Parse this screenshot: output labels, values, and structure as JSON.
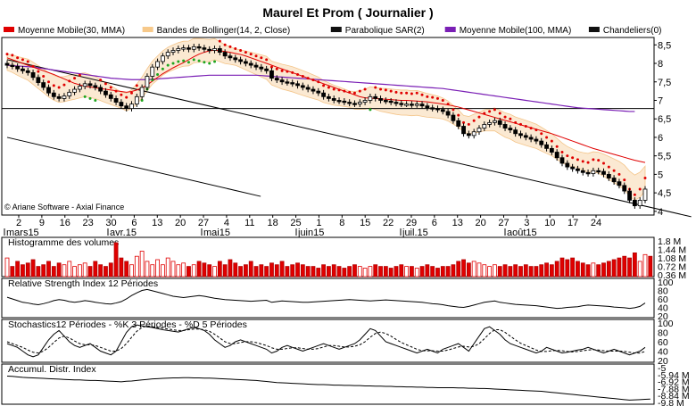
{
  "title": "Maurel Et Prom  ( Journalier )",
  "legend": [
    {
      "label": "Moyenne Mobile(30, MMA)",
      "color": "#e00000"
    },
    {
      "label": "Bandes de Bollinger(14, 2, Close)",
      "color": "#f7c98a"
    },
    {
      "label": "Parabolique SAR(2)",
      "color": "#111111"
    },
    {
      "label": "Moyenne Mobile(100, MMA)",
      "color": "#7a1fb5"
    },
    {
      "label": "Chandeliers(0)",
      "color": "#111111"
    }
  ],
  "watermark": "© Ariane Software - Axial Finance",
  "x_axis": {
    "day_ticks": [
      "2",
      "9",
      "16",
      "23",
      "30",
      "6",
      "13",
      "20",
      "27",
      "4",
      "11",
      "18",
      "25",
      "1",
      "8",
      "15",
      "22",
      "29",
      "6",
      "13",
      "20",
      "27",
      "3",
      "10",
      "17",
      "24"
    ],
    "months": [
      "mars15",
      "avr.15",
      "mai15",
      "juin15",
      "juil.15",
      "août15"
    ]
  },
  "price_axis": {
    "ticks": [
      "8,5",
      "8",
      "7,5",
      "7",
      "6,5",
      "6",
      "5,5",
      "5",
      "4,5",
      "4"
    ],
    "min": 3.9,
    "max": 8.7
  },
  "panels": {
    "volume": {
      "title": "Histogramme des volumes",
      "ticks": [
        "1.8 M",
        "1.44 M",
        "1.08 M",
        "0.72 M",
        "0.36 M"
      ]
    },
    "rsi": {
      "title": "Relative Strength Index 12 Périodes",
      "ticks": [
        "100",
        "80",
        "60",
        "40",
        "20"
      ]
    },
    "stoch": {
      "title": "Stochastics12 Périodes  -  %K 3 Périodes  -  %D 5 Périodes",
      "ticks": [
        "100",
        "80",
        "60",
        "40",
        "20"
      ]
    },
    "adi": {
      "title": "Accumul. Distr. Index",
      "ticks": [
        "-5",
        "-5.94 M",
        "-6.92 M",
        "-7.88 M",
        "-8.84 M",
        "-9.8 M"
      ]
    }
  },
  "chart_data": {
    "type": "candlestick",
    "title": "Maurel Et Prom  ( Journalier )",
    "period": "mars 2015 – août 2015",
    "close": [
      7.95,
      7.92,
      7.85,
      7.8,
      7.75,
      7.62,
      7.48,
      7.35,
      7.2,
      7.1,
      7.05,
      7.12,
      7.22,
      7.3,
      7.38,
      7.45,
      7.4,
      7.35,
      7.25,
      7.15,
      7.05,
      6.95,
      6.85,
      6.78,
      6.9,
      7.1,
      7.35,
      7.65,
      7.9,
      8.05,
      8.2,
      8.3,
      8.35,
      8.4,
      8.42,
      8.38,
      8.45,
      8.42,
      8.38,
      8.35,
      8.4,
      8.3,
      8.2,
      8.15,
      8.1,
      8.05,
      8,
      7.95,
      7.9,
      7.85,
      7.8,
      7.6,
      7.55,
      7.5,
      7.48,
      7.45,
      7.4,
      7.35,
      7.3,
      7.25,
      7.2,
      7.1,
      7.05,
      7,
      6.98,
      6.95,
      6.92,
      6.9,
      6.95,
      7,
      7.1,
      7.05,
      7,
      6.98,
      6.95,
      6.92,
      6.9,
      6.9,
      6.88,
      6.9,
      6.85,
      6.8,
      6.78,
      6.75,
      6.7,
      6.6,
      6.45,
      6.3,
      6.1,
      6.05,
      6.15,
      6.25,
      6.35,
      6.4,
      6.45,
      6.35,
      6.25,
      6.2,
      6.1,
      6.05,
      6,
      5.95,
      5.9,
      5.8,
      5.7,
      5.6,
      5.45,
      5.3,
      5.2,
      5.15,
      5.1,
      5.05,
      5.02,
      5.1,
      5.08,
      5,
      4.9,
      4.8,
      4.7,
      4.55,
      4.3,
      4.15,
      4.3,
      4.6
    ],
    "sma30": [
      8.15,
      8.1,
      8.05,
      8,
      7.95,
      7.9,
      7.85,
      7.8,
      7.75,
      7.7,
      7.64,
      7.58,
      7.52,
      7.46,
      7.42,
      7.38,
      7.36,
      7.34,
      7.32,
      7.3,
      7.28,
      7.26,
      7.24,
      7.22,
      7.24,
      7.28,
      7.34,
      7.42,
      7.52,
      7.62,
      7.72,
      7.8,
      7.88,
      7.95,
      8.02,
      8.1,
      8.18,
      8.25,
      8.3,
      8.34,
      8.36,
      8.34,
      8.32,
      8.3,
      8.27,
      8.24,
      8.2,
      8.15,
      8.1,
      8.05,
      8,
      7.95,
      7.9,
      7.85,
      7.8,
      7.75,
      7.7,
      7.65,
      7.6,
      7.55,
      7.5,
      7.45,
      7.4,
      7.35,
      7.3,
      7.25,
      7.2,
      7.15,
      7.1,
      7.07,
      7.06,
      7.05,
      7.04,
      7.03,
      7.02,
      7.01,
      7,
      7,
      6.99,
      6.98,
      6.97,
      6.96,
      6.94,
      6.92,
      6.9,
      6.88,
      6.85,
      6.82,
      6.78,
      6.74,
      6.7,
      6.66,
      6.62,
      6.58,
      6.54,
      6.5,
      6.46,
      6.42,
      6.38,
      6.34,
      6.3,
      6.26,
      6.22,
      6.18,
      6.14,
      6.1,
      6.05,
      6,
      5.95,
      5.9,
      5.85,
      5.8,
      5.75,
      5.7,
      5.66,
      5.62,
      5.58,
      5.54,
      5.5,
      5.46,
      5.42,
      5.38,
      5.35,
      5.32
    ],
    "sma100": [
      7.95,
      7.94,
      7.93,
      7.92,
      7.91,
      7.9,
      7.88,
      7.86,
      7.84,
      7.82,
      7.8,
      7.78,
      7.76,
      7.74,
      7.72,
      7.7,
      7.68,
      7.66,
      7.64,
      7.62,
      7.6,
      7.59,
      7.58,
      7.57,
      7.56,
      7.56,
      7.56,
      7.56,
      7.57,
      7.58,
      7.59,
      7.6,
      7.61,
      7.62,
      7.63,
      7.64,
      7.65,
      7.66,
      7.67,
      7.68,
      7.68,
      7.68,
      7.68,
      7.68,
      7.68,
      7.68,
      7.68,
      7.68,
      7.68,
      7.67,
      7.66,
      7.65,
      7.64,
      7.63,
      7.62,
      7.61,
      7.6,
      7.59,
      7.58,
      7.57,
      7.56,
      7.55,
      7.54,
      7.53,
      7.52,
      7.51,
      7.5,
      7.49,
      7.48,
      7.47,
      7.46,
      7.45,
      7.44,
      7.43,
      7.42,
      7.41,
      7.4,
      7.39,
      7.38,
      7.37,
      7.36,
      7.35,
      7.34,
      7.33,
      7.32,
      7.3,
      7.28,
      7.26,
      7.24,
      7.22,
      7.2,
      7.18,
      7.16,
      7.14,
      7.12,
      7.1,
      7.08,
      7.06,
      7.04,
      7.02,
      7,
      6.98,
      6.96,
      6.94,
      6.92,
      6.9,
      6.88,
      6.86,
      6.84,
      6.82,
      6.8,
      6.79,
      6.78,
      6.77,
      6.76,
      6.75,
      6.74,
      6.73,
      6.72,
      6.71,
      6.7,
      6.7
    ],
    "trendlines": [
      {
        "from": [
          0,
          8.1
        ],
        "to": [
          125,
          4.0
        ]
      },
      {
        "from": [
          0,
          6.0
        ],
        "to": [
          42,
          4.55
        ]
      },
      {
        "horizontal": 6.78
      }
    ],
    "volume_ratio": [
      0.55,
      0.3,
      0.45,
      0.35,
      0.4,
      0.5,
      0.3,
      0.35,
      0.45,
      0.3,
      0.4,
      0.35,
      0.45,
      0.3,
      0.35,
      0.4,
      0.3,
      0.45,
      0.35,
      0.3,
      0.4,
      1,
      0.55,
      0.45,
      0.35,
      0.6,
      0.75,
      0.45,
      0.35,
      0.5,
      0.35,
      0.55,
      0.45,
      0.35,
      0.4,
      0.3,
      0.35,
      0.45,
      0.4,
      0.35,
      0.3,
      0.45,
      0.35,
      0.5,
      0.4,
      0.3,
      0.35,
      0.45,
      0.3,
      0.35,
      0.3,
      0.4,
      0.35,
      0.45,
      0.3,
      0.35,
      0.4,
      0.35,
      0.3,
      0.3,
      0.25,
      0.35,
      0.3,
      0.35,
      0.3,
      0.25,
      0.3,
      0.35,
      0.3,
      0.25,
      0.3,
      0.35,
      0.3,
      0.3,
      0.25,
      0.3,
      0.35,
      0.3,
      0.3,
      0.25,
      0.3,
      0.35,
      0.3,
      0.25,
      0.3,
      0.3,
      0.35,
      0.45,
      0.5,
      0.4,
      0.45,
      0.4,
      0.35,
      0.3,
      0.35,
      0.3,
      0.35,
      0.3,
      0.35,
      0.3,
      0.35,
      0.3,
      0.3,
      0.35,
      0.4,
      0.35,
      0.45,
      0.55,
      0.5,
      0.55,
      0.45,
      0.4,
      0.35,
      0.4,
      0.35,
      0.4,
      0.45,
      0.5,
      0.55,
      0.6,
      0.55,
      0.7,
      0.45,
      0.65,
      0.6
    ],
    "rsi": [
      55,
      50,
      45,
      40,
      38,
      35,
      33,
      36,
      40,
      45,
      48,
      46,
      42,
      40,
      42,
      45,
      43,
      40,
      38,
      36,
      35,
      38,
      42,
      50,
      60,
      68,
      75,
      78,
      74,
      70,
      66,
      62,
      58,
      56,
      54,
      56,
      58,
      60,
      58,
      55,
      52,
      50,
      48,
      47,
      46,
      45,
      44,
      43,
      44,
      45,
      46,
      40,
      42,
      44,
      43,
      42,
      41,
      40,
      40,
      41,
      42,
      43,
      44,
      45,
      46,
      47,
      48,
      47,
      46,
      45,
      44,
      45,
      46,
      47,
      46,
      45,
      44,
      43,
      42,
      41,
      40,
      38,
      36,
      35,
      33,
      30,
      28,
      26,
      25,
      28,
      32,
      36,
      40,
      42,
      44,
      40,
      38,
      36,
      34,
      33,
      32,
      31,
      30,
      28,
      26,
      24,
      22,
      23,
      25,
      26,
      27,
      30,
      32,
      31,
      30,
      29,
      28,
      26,
      25,
      24,
      22,
      24,
      28,
      38
    ],
    "stoch_k": [
      45,
      40,
      35,
      25,
      15,
      10,
      15,
      35,
      55,
      70,
      80,
      65,
      50,
      40,
      35,
      40,
      45,
      35,
      25,
      20,
      15,
      25,
      50,
      75,
      90,
      95,
      92,
      90,
      88,
      85,
      82,
      80,
      78,
      76,
      80,
      85,
      88,
      85,
      80,
      70,
      55,
      45,
      35,
      40,
      50,
      55,
      50,
      45,
      40,
      35,
      30,
      20,
      25,
      35,
      40,
      35,
      30,
      25,
      30,
      35,
      40,
      45,
      40,
      35,
      30,
      35,
      40,
      45,
      55,
      70,
      85,
      80,
      65,
      50,
      45,
      40,
      35,
      30,
      25,
      20,
      25,
      30,
      25,
      20,
      30,
      35,
      40,
      45,
      35,
      25,
      45,
      65,
      85,
      90,
      80,
      70,
      55,
      45,
      40,
      35,
      30,
      25,
      20,
      25,
      35,
      30,
      25,
      20,
      22,
      25,
      28,
      30,
      35,
      30,
      25,
      20,
      25,
      30,
      25,
      20,
      15,
      20,
      25,
      35
    ],
    "stoch_d": [
      50,
      45,
      40,
      35,
      28,
      22,
      20,
      25,
      35,
      48,
      60,
      65,
      60,
      52,
      45,
      42,
      42,
      40,
      35,
      30,
      25,
      25,
      32,
      45,
      62,
      78,
      88,
      92,
      90,
      88,
      86,
      84,
      82,
      80,
      80,
      82,
      84,
      84,
      82,
      78,
      70,
      60,
      50,
      45,
      45,
      48,
      50,
      50,
      48,
      44,
      40,
      34,
      30,
      30,
      32,
      34,
      34,
      32,
      30,
      30,
      32,
      36,
      40,
      40,
      38,
      36,
      36,
      38,
      42,
      50,
      62,
      72,
      76,
      72,
      65,
      56,
      48,
      42,
      36,
      30,
      26,
      26,
      26,
      25,
      25,
      28,
      32,
      36,
      38,
      36,
      38,
      45,
      58,
      72,
      82,
      82,
      75,
      65,
      55,
      46,
      40,
      34,
      28,
      24,
      24,
      26,
      27,
      26,
      24,
      23,
      24,
      26,
      28,
      29,
      28,
      26,
      25,
      25,
      25,
      24,
      22,
      20,
      20,
      24
    ],
    "adi": [
      0.05,
      0.06,
      0.08,
      0.1,
      0.11,
      0.12,
      0.13,
      0.14,
      0.15,
      0.16,
      0.17,
      0.18,
      0.19,
      0.2,
      0.2,
      0.21,
      0.22,
      0.22,
      0.23,
      0.24,
      0.25,
      0.26,
      0.27,
      0.25,
      0.24,
      0.22,
      0.2,
      0.18,
      0.16,
      0.15,
      0.14,
      0.13,
      0.12,
      0.12,
      0.11,
      0.11,
      0.12,
      0.12,
      0.13,
      0.13,
      0.14,
      0.15,
      0.16,
      0.17,
      0.18,
      0.19,
      0.2,
      0.21,
      0.22,
      0.24,
      0.26,
      0.28,
      0.3,
      0.31,
      0.32,
      0.33,
      0.34,
      0.35,
      0.36,
      0.37,
      0.38,
      0.38,
      0.39,
      0.4,
      0.4,
      0.41,
      0.41,
      0.42,
      0.42,
      0.43,
      0.43,
      0.44,
      0.44,
      0.45,
      0.45,
      0.46,
      0.46,
      0.47,
      0.47,
      0.48,
      0.48,
      0.49,
      0.49,
      0.5,
      0.5,
      0.5,
      0.5,
      0.51,
      0.51,
      0.52,
      0.52,
      0.53,
      0.53,
      0.54,
      0.55,
      0.56,
      0.57,
      0.58,
      0.59,
      0.6,
      0.61,
      0.62,
      0.63,
      0.64,
      0.66,
      0.68,
      0.7,
      0.72,
      0.74,
      0.76,
      0.78,
      0.8,
      0.82,
      0.84,
      0.86,
      0.88,
      0.9,
      0.92,
      0.94,
      0.96,
      0.98,
      0.97,
      0.96,
      0.95,
      0.94
    ]
  }
}
